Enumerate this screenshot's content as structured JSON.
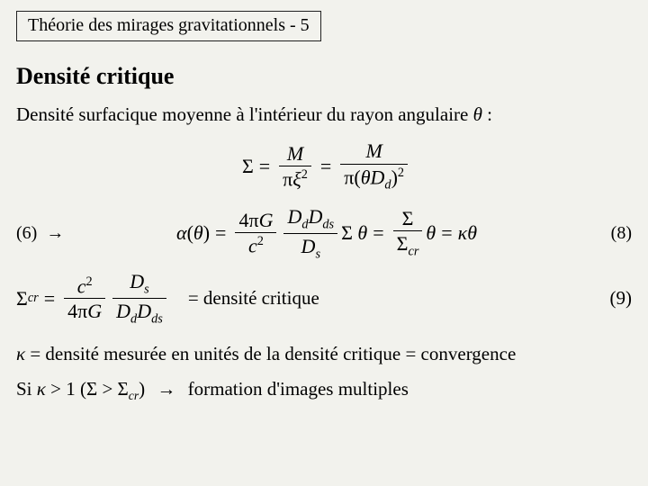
{
  "header": {
    "title": "Théorie des mirages gravitationnels - 5"
  },
  "heading": "Densité critique",
  "intro": {
    "prefix": "Densité surfacique moyenne à l'intérieur du rayon angulaire ",
    "theta": "θ",
    "suffix": " :"
  },
  "eq7": {
    "Sigma": "Σ",
    "M": "M",
    "pi": "π",
    "xi": "ξ",
    "theta": "θ",
    "Dd": "D",
    "Dd_sub": "d"
  },
  "eq8": {
    "left_label": "(6)",
    "arrow": "→",
    "alpha": "α",
    "theta": "θ",
    "fourpiG": "4πG",
    "c2": "c",
    "Dd": "D",
    "Dd_sub": "d",
    "Dds": "D",
    "Dds_sub": "ds",
    "Ds": "D",
    "Ds_sub": "s",
    "Sigma": "Σ",
    "Sigma_cr": "Σ",
    "cr_sub": "cr",
    "kappa": "κ",
    "right_label": "(8)"
  },
  "eq9": {
    "Sigma_cr": "Σ",
    "cr_sub": "cr",
    "c2": "c",
    "fourpiG": "4πG",
    "Ds": "D",
    "Ds_sub": "s",
    "Dd": "D",
    "Dd_sub": "d",
    "Dds": "D",
    "Dds_sub": "ds",
    "text": "=  densité critique",
    "right_label": "(9)"
  },
  "kappa_line": {
    "kappa": "κ",
    "text": " = densité mesurée en unités de la densité critique = convergence"
  },
  "final": {
    "prefix": "Si ",
    "kappa": "κ",
    "gt1": " > 1 (",
    "Sigma": "Σ",
    "gt": " > ",
    "Sigma2": "Σ",
    "cr_sub": "cr",
    "close": ")   ",
    "arrow": "→",
    "rest": "  formation d'images multiples"
  },
  "colors": {
    "background": "#f2f2ed",
    "text": "#000000",
    "border": "#222222"
  },
  "typography": {
    "body_fontsize_pt": 16,
    "heading_fontsize_pt": 20,
    "font_family": "Times New Roman"
  }
}
